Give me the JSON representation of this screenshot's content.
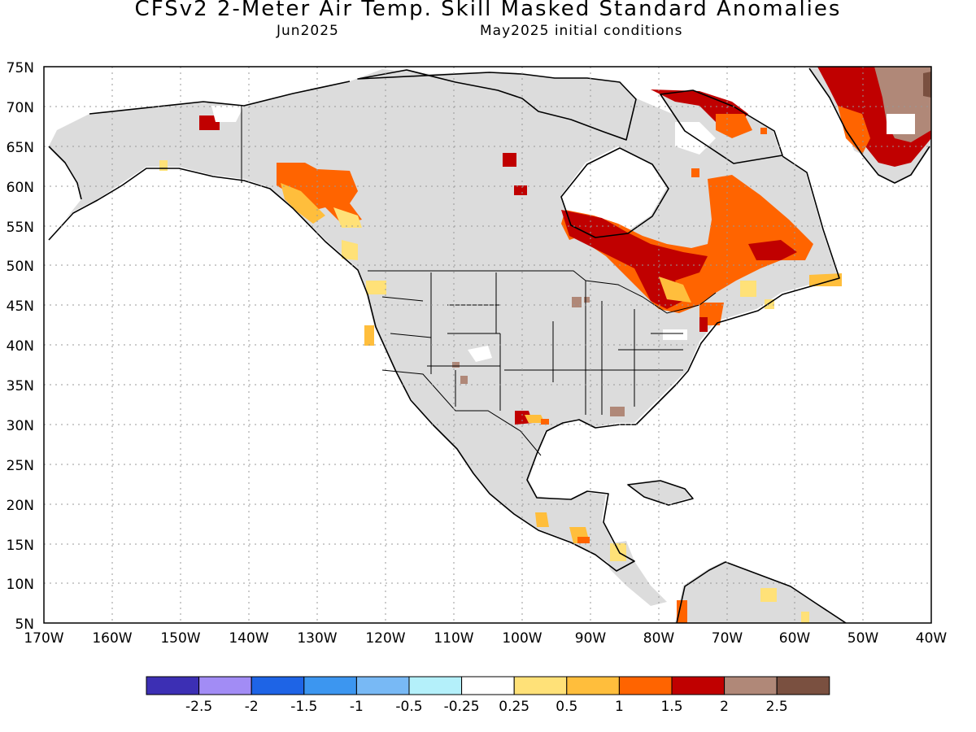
{
  "header": {
    "title": "CFSv2 2-Meter Air Temp. Skill Masked Standard Anomalies",
    "valid_month": "Jun2025",
    "init": "May2025 initial conditions"
  },
  "axes": {
    "lat_labels": [
      "75N",
      "70N",
      "65N",
      "60N",
      "55N",
      "50N",
      "45N",
      "40N",
      "35N",
      "30N",
      "25N",
      "20N",
      "15N",
      "10N",
      "5N"
    ],
    "lon_labels": [
      "170W",
      "160W",
      "150W",
      "140W",
      "130W",
      "120W",
      "110W",
      "100W",
      "90W",
      "80W",
      "70W",
      "60W",
      "50W",
      "40W"
    ]
  },
  "legend": {
    "bins": [
      {
        "color": "#3c2fb4"
      },
      {
        "color": "#a28cf5"
      },
      {
        "color": "#1e64e6"
      },
      {
        "color": "#3c96f0"
      },
      {
        "color": "#78b9f5"
      },
      {
        "color": "#b4f0fa"
      },
      {
        "color": "#ffffff"
      },
      {
        "color": "#ffe178"
      },
      {
        "color": "#ffbe3c"
      },
      {
        "color": "#ff6400"
      },
      {
        "color": "#c00000"
      },
      {
        "color": "#b08878"
      },
      {
        "color": "#7a5040"
      }
    ],
    "labels": [
      "-2.5",
      "-2",
      "-1.5",
      "-1",
      "-0.5",
      "-0.25",
      "0.25",
      "0.5",
      "1",
      "1.5",
      "2",
      "2.5"
    ]
  },
  "map_colors": {
    "land": "#dcdcdc",
    "coast": "#000000",
    "grid": "#999999"
  }
}
